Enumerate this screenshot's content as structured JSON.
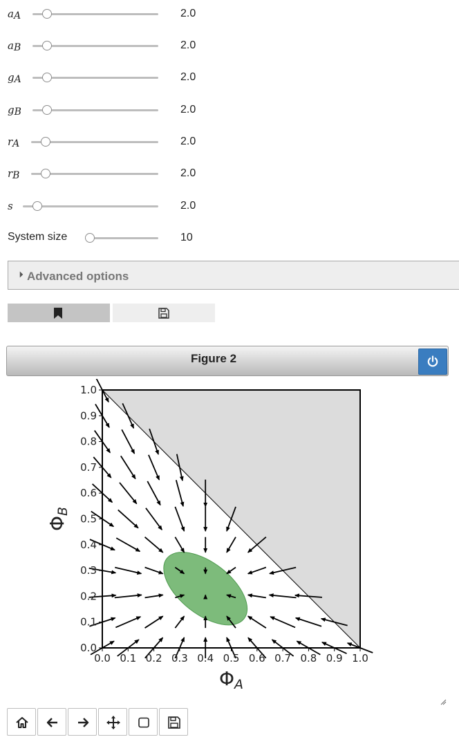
{
  "sliders": [
    {
      "label": "aA",
      "value": "2.0"
    },
    {
      "label": "aB",
      "value": "2.0"
    },
    {
      "label": "gA",
      "value": "2.0"
    },
    {
      "label": "gB",
      "value": "2.0"
    },
    {
      "label": "rA",
      "value": "2.0"
    },
    {
      "label": "rB",
      "value": "2.0"
    },
    {
      "label": "s",
      "value": "2.0"
    },
    {
      "label": "System size",
      "value": "10"
    }
  ],
  "advanced": {
    "label": "Advanced options"
  },
  "tabs": [
    {
      "icon": "bookmark-icon"
    },
    {
      "icon": "save-icon"
    }
  ],
  "figure": {
    "title": "Figure 2",
    "power_icon": "power-icon"
  },
  "toolbar": [
    "home-icon",
    "back-arrow-icon",
    "forward-arrow-icon",
    "move-icon",
    "zoom-rect-icon",
    "save-icon"
  ],
  "chart_data": {
    "type": "quiver",
    "xlabel": "ΦA",
    "ylabel": "ΦB",
    "xlim": [
      0,
      1
    ],
    "ylim": [
      0,
      1
    ],
    "xticks": [
      "0.0",
      "0.1",
      "0.2",
      "0.3",
      "0.4",
      "0.5",
      "0.6",
      "0.7",
      "0.8",
      "0.9",
      "1.0"
    ],
    "yticks": [
      "0.0",
      "0.1",
      "0.2",
      "0.3",
      "0.4",
      "0.5",
      "0.6",
      "0.7",
      "0.8",
      "0.9",
      "1.0"
    ],
    "fixed_point": [
      0.4,
      0.23
    ],
    "ellipse": {
      "center": [
        0.4,
        0.23
      ],
      "width_along_axis": 0.38,
      "height": 0.2,
      "angle_deg": -38,
      "color": "#6fb46d"
    },
    "forbidden_region": {
      "vertices": [
        [
          0,
          1
        ],
        [
          1,
          1
        ],
        [
          1,
          0
        ]
      ],
      "color": "#dcdcdc"
    },
    "grid_step": 0.1,
    "arrow_color": "#000000"
  }
}
